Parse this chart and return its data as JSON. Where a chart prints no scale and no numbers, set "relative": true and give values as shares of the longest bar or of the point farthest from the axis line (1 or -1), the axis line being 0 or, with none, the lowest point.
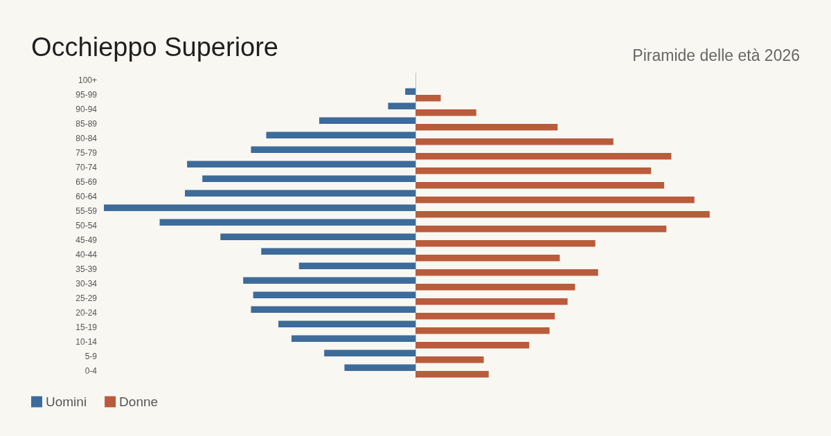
{
  "chart_data": {
    "type": "bar",
    "orientation": "horizontal",
    "relative": true,
    "title": "Occhieppo Superiore",
    "subtitle": "Piramide delle età 2026",
    "categories": [
      "100+",
      "95-99",
      "90-94",
      "85-89",
      "80-84",
      "75-79",
      "70-74",
      "65-69",
      "60-64",
      "55-59",
      "50-54",
      "45-49",
      "40-44",
      "35-39",
      "30-34",
      "25-29",
      "20-24",
      "15-19",
      "10-14",
      "5-9",
      "0-4"
    ],
    "series": [
      {
        "name": "Uomini",
        "color": "#3d6b9a",
        "values": [
          0,
          -0.033,
          -0.088,
          -0.309,
          -0.479,
          -0.528,
          -0.733,
          -0.684,
          -0.74,
          -1,
          -0.821,
          -0.626,
          -0.495,
          -0.374,
          -0.553,
          -0.521,
          -0.528,
          -0.44,
          -0.398,
          -0.293,
          -0.228
        ]
      },
      {
        "name": "Donne",
        "color": "#b85c3c",
        "values": [
          0,
          0.081,
          0.195,
          0.456,
          0.635,
          0.821,
          0.756,
          0.798,
          0.895,
          0.944,
          0.805,
          0.577,
          0.463,
          0.586,
          0.512,
          0.488,
          0.447,
          0.43,
          0.365,
          0.219,
          0.235
        ]
      }
    ],
    "legend": "bottom left"
  }
}
